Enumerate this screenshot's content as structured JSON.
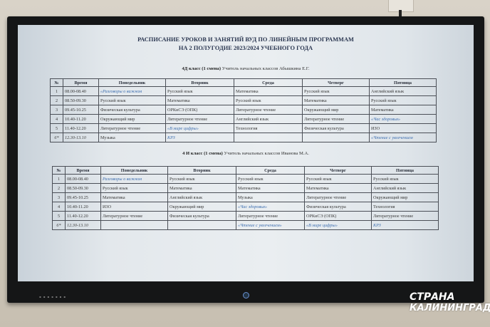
{
  "title_line1": "РАСПИСАНИЕ УРОКОВ И ЗАНЯТИЙ ВУД ПО ЛИНЕЙНЫМ ПРОГРАММАМ",
  "title_line2": "НА 2 ПОЛУГОДИЕ 2023/2024 УЧЕБНОГО ГОДА",
  "headers": [
    "№",
    "Время",
    "Понедельник",
    "Вторник",
    "Среда",
    "Четверг",
    "Пятница"
  ],
  "highlight_color": "#3e6fb0",
  "classes": [
    {
      "class_name": "4Д класс (1 смена)",
      "teacher": "Учитель начальных классов Абышкина Е.Г.",
      "rows": [
        [
          "1",
          "08.00-08.40",
          "«Разговоры о важном",
          "Русский язык",
          "Математика",
          "Русский язык",
          "Английский язык"
        ],
        [
          "2",
          "08.50-09.30",
          "Русский язык",
          "Математика",
          "Русский язык",
          "Математика",
          "Русский язык"
        ],
        [
          "3",
          "09.45-10.25",
          "Физическая культура",
          "ОРКиСЭ (ОПК)",
          "Литературное чтение",
          "Окружающий мир",
          "Математика"
        ],
        [
          "4",
          "10.40-11.20",
          "Окружающий мир",
          "Литературное чтение",
          "Английский язык",
          "Литературное чтение",
          "«Час здоровья»"
        ],
        [
          "5",
          "11.40-12.20",
          "Литературное чтение",
          "«В мире цифры»",
          "Технология",
          "Физическая культура",
          "ИЗО"
        ],
        [
          "6*",
          "12.30-13.10",
          "Музыка",
          "КРЗ",
          "",
          "",
          "«Чтение с увлечением"
        ]
      ]
    },
    {
      "class_name": "4 И класс (1 смена)",
      "teacher": "Учитель начальных классов Иванова М.А.",
      "rows": [
        [
          "1",
          "08.00-08.40",
          "Разговоры о важном",
          "Русский язык",
          "Русский язык",
          "Русский язык",
          "Русский язык"
        ],
        [
          "2",
          "08.50-09.30",
          "Русский язык",
          "Математика",
          "Математика",
          "Математика",
          "Английский язык"
        ],
        [
          "3",
          "09.45-10.25",
          "Математика",
          "Английский язык",
          "Музыка",
          "Литературное чтение",
          "Окружающий мир"
        ],
        [
          "4",
          "10.40-11.20",
          "ИЗО",
          "Окружающий мир",
          "«Час здоровья»",
          "Физическая культура",
          "Технология"
        ],
        [
          "5",
          "11.40-12.20",
          "Литературное чтение",
          "Физическая культура",
          "Литературное чтение",
          "ОРКиСЭ (ОПК)",
          "Литературное чтение"
        ],
        [
          "6*",
          "12.30-13.10",
          "",
          "",
          "«Чтение с увлечением»",
          "«В мире цифры»",
          "КРЗ"
        ]
      ]
    }
  ],
  "italic_cells": [
    "«Разговоры о важном",
    "Разговоры о важном",
    "«В мире цифры»",
    "КРЗ",
    "«Час здоровья»",
    "«Чтение с увлечением",
    "«Чтение с увлечением»"
  ],
  "logo": {
    "line1": "СТРАНА",
    "line2": "КАЛИНИНГРАД"
  }
}
